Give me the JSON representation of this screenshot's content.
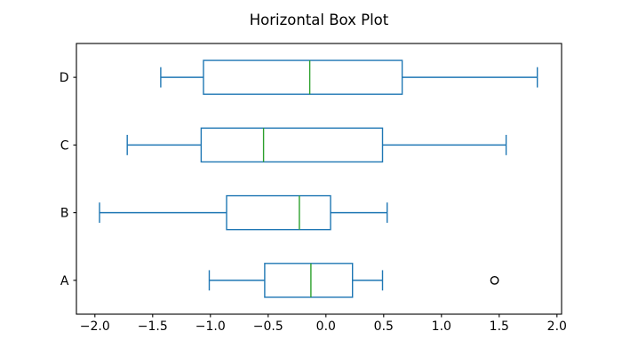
{
  "chart_data": {
    "type": "boxplot",
    "orientation": "horizontal",
    "title": "Horizontal Box Plot",
    "xlabel": "",
    "ylabel": "",
    "grid": false,
    "legend": null,
    "categories": [
      "A",
      "B",
      "C",
      "D"
    ],
    "series": [
      {
        "name": "A",
        "whisker_low": -1.01,
        "q1": -0.53,
        "median": -0.13,
        "q3": 0.23,
        "whisker_high": 0.49,
        "outliers": [
          1.46
        ]
      },
      {
        "name": "B",
        "whisker_low": -1.96,
        "q1": -0.86,
        "median": -0.23,
        "q3": 0.04,
        "whisker_high": 0.53,
        "outliers": []
      },
      {
        "name": "C",
        "whisker_low": -1.72,
        "q1": -1.08,
        "median": -0.54,
        "q3": 0.49,
        "whisker_high": 1.56,
        "outliers": []
      },
      {
        "name": "D",
        "whisker_low": -1.43,
        "q1": -1.06,
        "median": -0.14,
        "q3": 0.66,
        "whisker_high": 1.83,
        "outliers": []
      }
    ],
    "x_ticks": [
      {
        "value": -2.0,
        "label": "−2.0"
      },
      {
        "value": -1.5,
        "label": "−1.5"
      },
      {
        "value": -1.0,
        "label": "−1.0"
      },
      {
        "value": -0.5,
        "label": "−0.5"
      },
      {
        "value": 0.0,
        "label": "0.0"
      },
      {
        "value": 0.5,
        "label": "0.5"
      },
      {
        "value": 1.0,
        "label": "1.0"
      },
      {
        "value": 1.5,
        "label": "1.5"
      },
      {
        "value": 2.0,
        "label": "2.0"
      }
    ],
    "xlim": [
      -2.16,
      2.04
    ],
    "ylim": [
      0.5,
      4.5
    ],
    "box_width": 0.5,
    "cap_width": 0.3,
    "colors": {
      "box": "#1f77b4",
      "median": "#2ca02c",
      "flier_edge": "#000000",
      "axis": "#000000",
      "text": "#000000",
      "background": "#ffffff"
    }
  }
}
